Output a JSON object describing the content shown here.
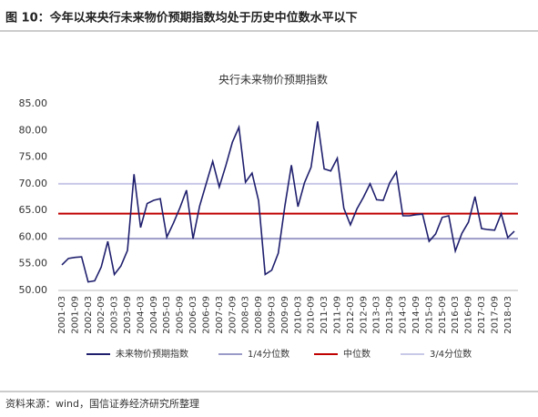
{
  "header": {
    "title": "图 10：今年以来央行未来物价预期指数均处于历史中位数水平以下"
  },
  "chart_data": {
    "type": "line",
    "title": "央行未来物价预期指数",
    "categories": [
      "2001-03",
      null,
      "2001-09",
      null,
      "2002-03",
      null,
      "2002-09",
      null,
      "2003-03",
      null,
      "2003-09",
      null,
      "2004-03",
      null,
      "2004-09",
      null,
      "2005-03",
      null,
      "2005-09",
      null,
      "2006-03",
      null,
      "2006-09",
      null,
      "2007-03",
      null,
      "2007-09",
      null,
      "2008-03",
      null,
      "2008-09",
      null,
      "2009-03",
      null,
      "2009-09",
      null,
      "2010-03",
      null,
      "2010-09",
      null,
      "2011-03",
      null,
      "2011-09",
      null,
      "2012-03",
      null,
      "2012-09",
      null,
      "2013-03",
      null,
      "2013-09",
      null,
      "2014-03",
      null,
      "2014-09",
      null,
      "2015-03",
      null,
      "2015-09",
      null,
      "2016-03",
      null,
      "2016-09",
      null,
      "2017-03",
      null,
      "2017-09",
      null,
      "2018-03",
      null
    ],
    "series": [
      {
        "name": "未来物价预期指数",
        "color": "#1f1f6e",
        "values": [
          54.8,
          56.0,
          56.2,
          56.3,
          51.6,
          51.8,
          54.4,
          59.2,
          53.0,
          54.6,
          57.5,
          71.8,
          61.8,
          66.3,
          66.9,
          67.2,
          60.0,
          62.6,
          65.5,
          68.8,
          59.7,
          65.8,
          70.0,
          74.2,
          69.4,
          73.4,
          77.8,
          80.6,
          70.3,
          72.0,
          66.8,
          53.0,
          53.8,
          57.0,
          65.8,
          73.5,
          65.7,
          70.2,
          73.1,
          81.7,
          72.8,
          72.4,
          74.8,
          65.4,
          62.3,
          65.3,
          67.5,
          70.0,
          67.0,
          66.9,
          70.2,
          72.2,
          64.0,
          64.0,
          64.2,
          64.3,
          59.2,
          60.6,
          63.7,
          64.0,
          57.4,
          60.7,
          62.8,
          67.6,
          61.6,
          61.4,
          61.3,
          64.4,
          59.9,
          61.1
        ]
      }
    ],
    "reference_lines": [
      {
        "name": "1/4分位数",
        "color": "#9a9ac8",
        "value": 59.7
      },
      {
        "name": "中位数",
        "color": "#c00000",
        "value": 64.4
      },
      {
        "name": "3/4分位数",
        "color": "#c8c8e8",
        "value": 70.0
      }
    ],
    "ylim": [
      50,
      85
    ],
    "yticks": [
      {
        "value": 50,
        "label": "50.00"
      },
      {
        "value": 55,
        "label": "55.00"
      },
      {
        "value": 60,
        "label": "60.00"
      },
      {
        "value": 65,
        "label": "65.00"
      },
      {
        "value": 70,
        "label": "70.00"
      },
      {
        "value": 75,
        "label": "75.00"
      },
      {
        "value": 80,
        "label": "80.00"
      },
      {
        "value": 85,
        "label": "85.00"
      }
    ]
  },
  "footer": {
    "source": "资料来源：wind，国信证券经济研究所整理"
  }
}
